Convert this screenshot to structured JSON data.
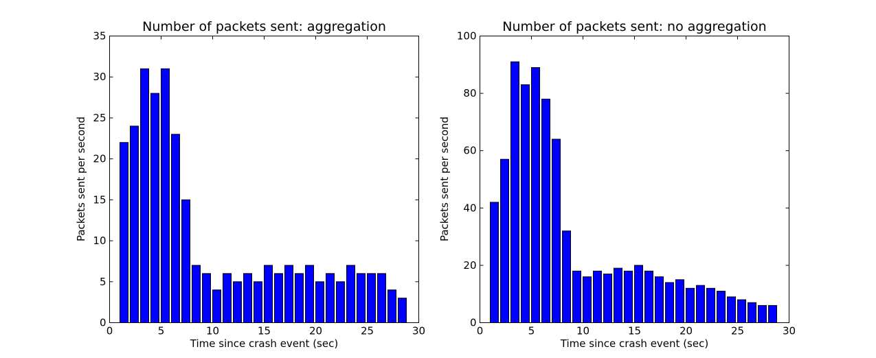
{
  "chart_data": [
    {
      "type": "bar",
      "title": "Number of packets sent: aggregation",
      "xlabel": "Time since crash event (sec)",
      "ylabel": "Packets sent per second",
      "xlim": [
        0,
        30
      ],
      "ylim": [
        0,
        35
      ],
      "xticks": [
        0,
        5,
        10,
        15,
        20,
        25,
        30
      ],
      "yticks": [
        0,
        5,
        10,
        15,
        20,
        25,
        30,
        35
      ],
      "bar_width": 0.8,
      "color": "#0000ff",
      "x": [
        1,
        2,
        3,
        4,
        5,
        6,
        7,
        8,
        9,
        10,
        11,
        12,
        13,
        14,
        15,
        16,
        17,
        18,
        19,
        20,
        21,
        22,
        23,
        24,
        25,
        26,
        27,
        28
      ],
      "values": [
        22,
        24,
        31,
        28,
        31,
        23,
        15,
        7,
        6,
        4,
        6,
        5,
        6,
        5,
        7,
        6,
        7,
        6,
        7,
        5,
        6,
        5,
        7,
        6,
        6,
        6,
        4,
        3
      ]
    },
    {
      "type": "bar",
      "title": "Number of packets sent: no aggregation",
      "xlabel": "Time since crash event (sec)",
      "ylabel": "Packets sent per second",
      "xlim": [
        0,
        30
      ],
      "ylim": [
        0,
        100
      ],
      "xticks": [
        0,
        5,
        10,
        15,
        20,
        25,
        30
      ],
      "yticks": [
        0,
        20,
        40,
        60,
        80,
        100
      ],
      "bar_width": 0.8,
      "color": "#0000ff",
      "x": [
        1,
        2,
        3,
        4,
        5,
        6,
        7,
        8,
        9,
        10,
        11,
        12,
        13,
        14,
        15,
        16,
        17,
        18,
        19,
        20,
        21,
        22,
        23,
        24,
        25,
        26,
        27,
        28
      ],
      "values": [
        42,
        57,
        91,
        83,
        89,
        78,
        64,
        32,
        18,
        16,
        18,
        17,
        19,
        18,
        20,
        18,
        16,
        14,
        15,
        12,
        13,
        12,
        11,
        9,
        8,
        7,
        6,
        6
      ]
    }
  ]
}
